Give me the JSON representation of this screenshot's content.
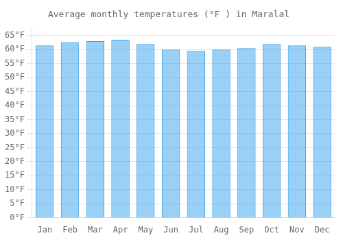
{
  "chart_data": {
    "type": "bar",
    "title": "Average monthly temperatures (°F ) in Maralal",
    "categories": [
      "Jan",
      "Feb",
      "Mar",
      "Apr",
      "May",
      "Jun",
      "Jul",
      "Aug",
      "Sep",
      "Oct",
      "Nov",
      "Dec"
    ],
    "values": [
      61.5,
      62.5,
      63.0,
      63.5,
      62.0,
      60.0,
      59.5,
      60.0,
      60.5,
      62.0,
      61.5,
      61.0
    ],
    "ylim": [
      0,
      68
    ],
    "yticks": [
      {
        "value": 0,
        "label": "0°F"
      },
      {
        "value": 5,
        "label": "5°F"
      },
      {
        "value": 10,
        "label": "10°F"
      },
      {
        "value": 15,
        "label": "15°F"
      },
      {
        "value": 20,
        "label": "20°F"
      },
      {
        "value": 25,
        "label": "25°F"
      },
      {
        "value": 30,
        "label": "30°F"
      },
      {
        "value": 35,
        "label": "35°F"
      },
      {
        "value": 40,
        "label": "40°F"
      },
      {
        "value": 45,
        "label": "45°F"
      },
      {
        "value": 50,
        "label": "50°F"
      },
      {
        "value": 55,
        "label": "55°F"
      },
      {
        "value": 60,
        "label": "60°F"
      },
      {
        "value": 65,
        "label": "65°F"
      }
    ],
    "grid": true
  }
}
